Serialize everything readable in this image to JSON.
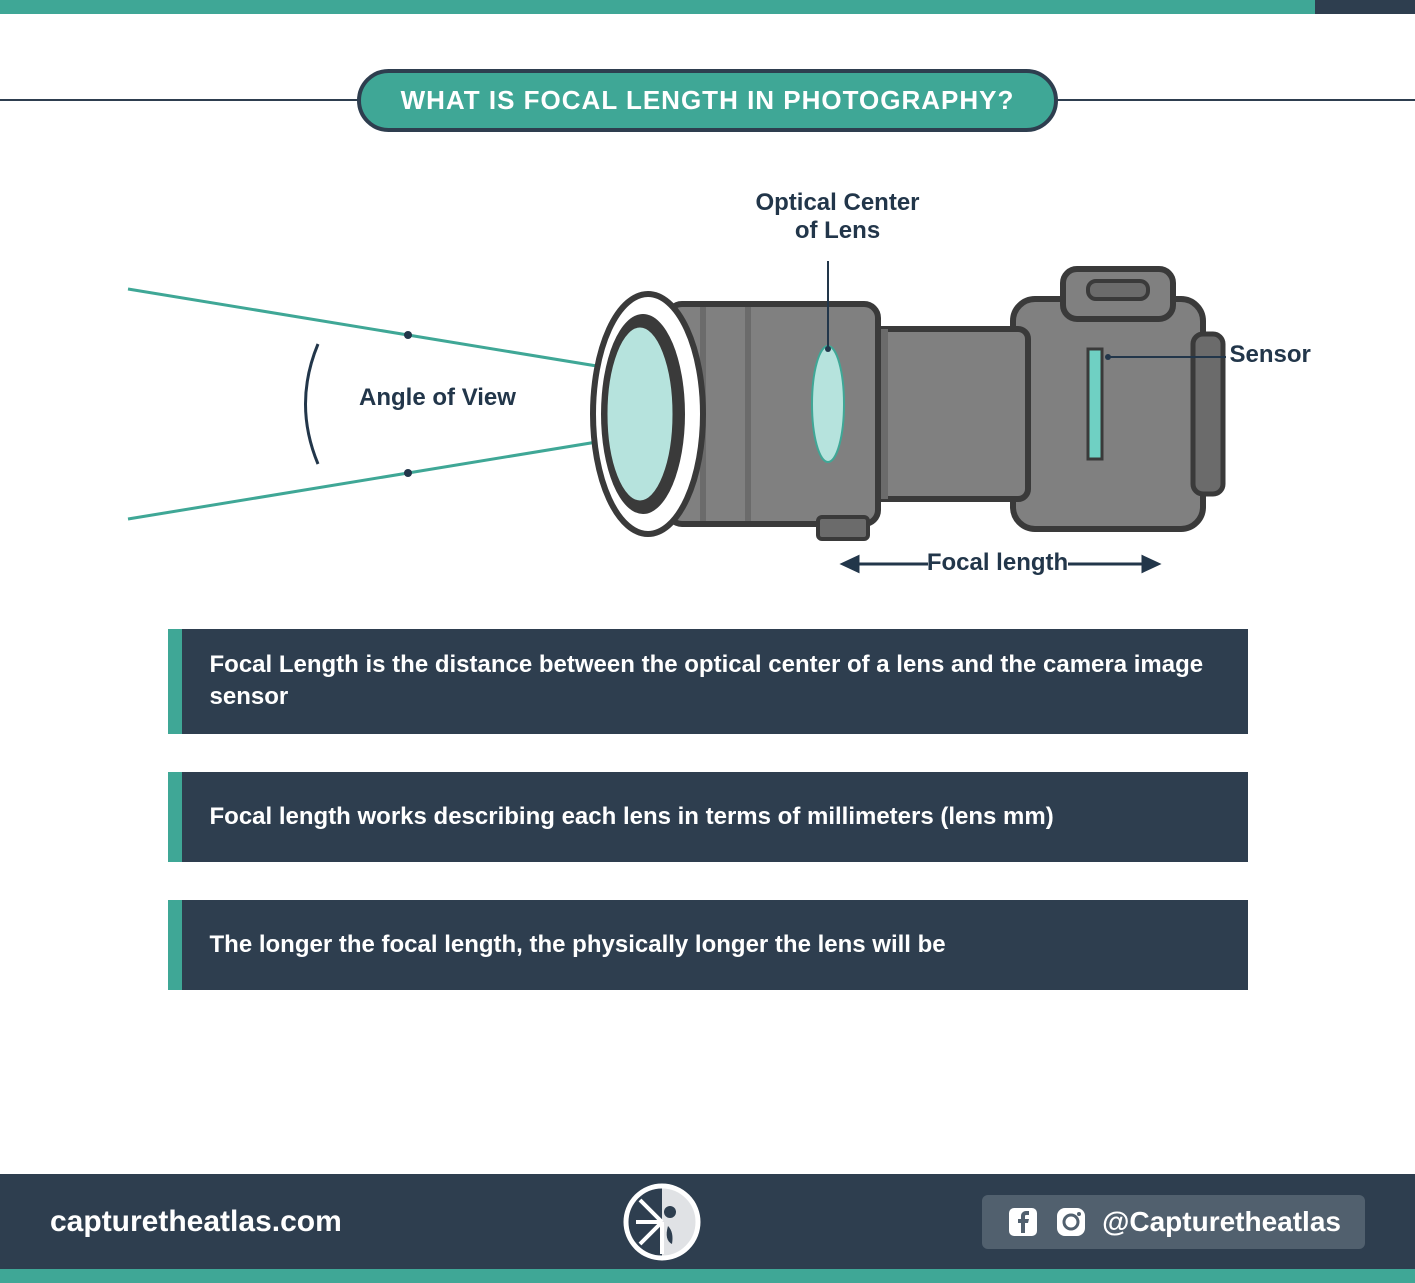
{
  "colors": {
    "teal": "#3fa796",
    "dark_navy": "#2e3e4f",
    "navy_text": "#22364a",
    "fact_bg": "#2e3e4f",
    "fact_accent": "#3fa796",
    "footer_bg": "#2e3e4f",
    "footer_social_bg": "#51606e",
    "white": "#ffffff",
    "camera_body": "#808080",
    "camera_dark": "#6b6b6b",
    "camera_outline": "#3a3a3a",
    "glass": "#b6e3dd",
    "sensor": "#6fd0c3",
    "ray": "#3fa796"
  },
  "title": "WHAT IS FOCAL LENGTH IN PHOTOGRAPHY?",
  "title_fontsize": 26,
  "diagram": {
    "labels": {
      "optical_center": "Optical Center\nof Lens",
      "angle_of_view": "Angle of View",
      "sensor": "Sensor",
      "focal_length": "Focal length"
    },
    "label_fontsize": 24,
    "angle_deg": 28,
    "ray_color": "#3fa796",
    "ray_width": 3,
    "arc_color": "#22364a",
    "arc_width": 2,
    "camera": {
      "body_fill": "#808080",
      "body_dark": "#6b6b6b",
      "outline": "#3a3a3a",
      "outline_width": 5,
      "glass_fill": "#b6e3dd",
      "sensor_fill": "#6fd0c3"
    }
  },
  "facts": [
    "Focal Length is the distance between the optical center of a lens and the camera image sensor",
    "Focal length works describing each lens in terms of millimeters (lens mm)",
    "The longer the focal length, the physically longer the lens will be"
  ],
  "fact_fontsize": 24,
  "footer": {
    "url": "capturetheatlas.com",
    "handle": "@Capturetheatlas",
    "url_fontsize": 30,
    "handle_fontsize": 28
  }
}
